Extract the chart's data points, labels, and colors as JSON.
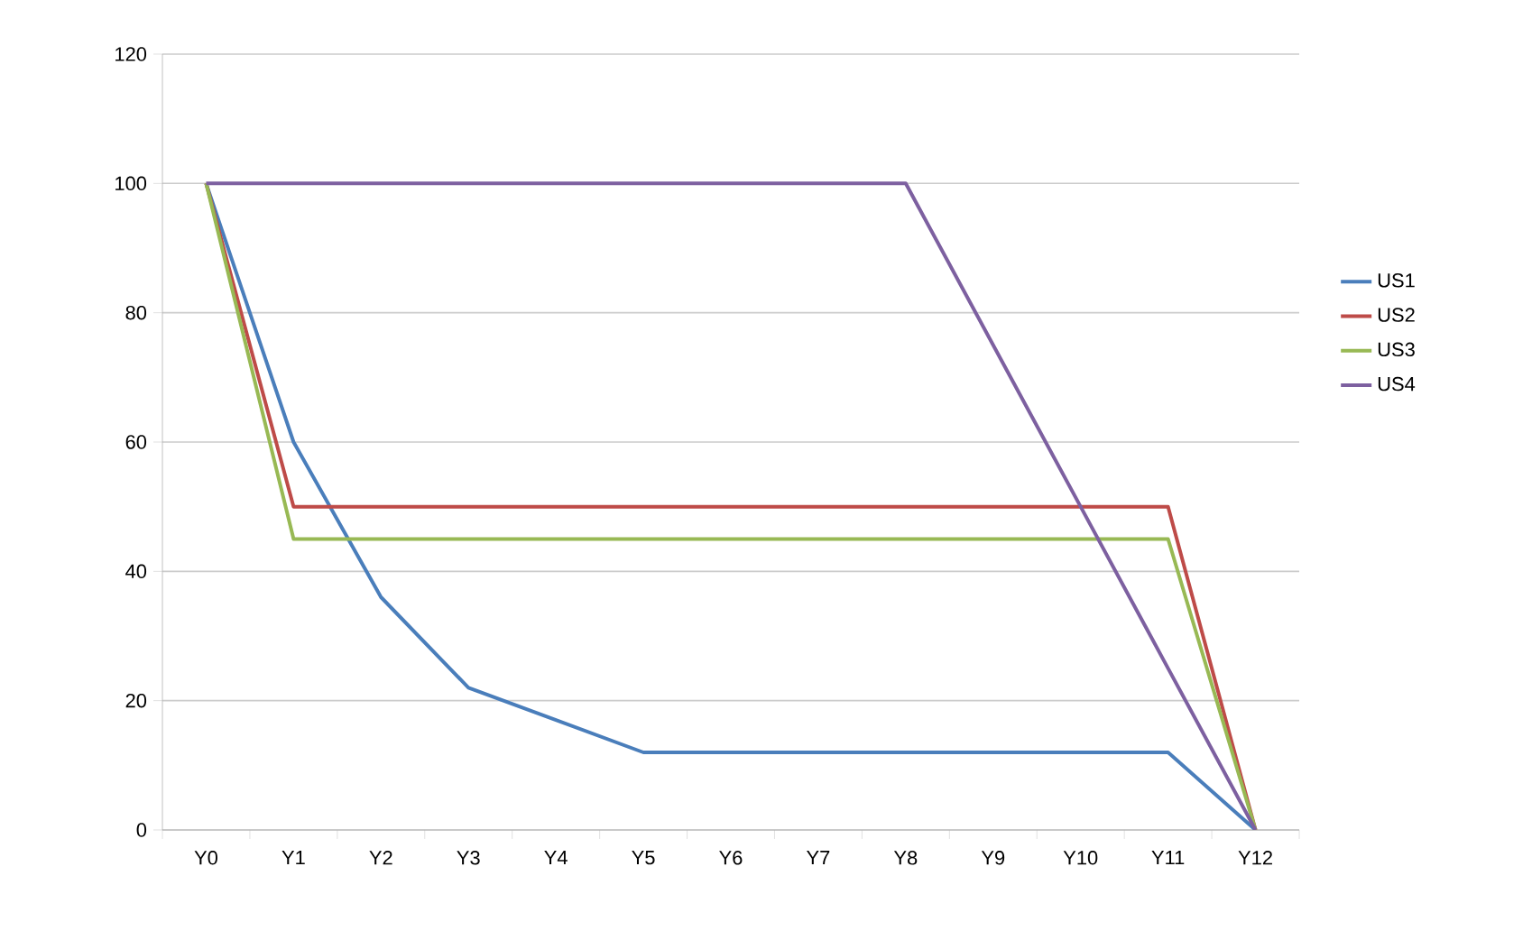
{
  "chart_data": {
    "type": "line",
    "categories": [
      "Y0",
      "Y1",
      "Y2",
      "Y3",
      "Y4",
      "Y5",
      "Y6",
      "Y7",
      "Y8",
      "Y9",
      "Y10",
      "Y11",
      "Y12"
    ],
    "series": [
      {
        "name": "US1",
        "color": "#4a7ebb",
        "values": [
          100,
          60,
          36,
          22,
          17,
          12,
          12,
          12,
          12,
          12,
          12,
          12,
          0
        ]
      },
      {
        "name": "US2",
        "color": "#be4b48",
        "values": [
          100,
          50,
          50,
          50,
          50,
          50,
          50,
          50,
          50,
          50,
          50,
          50,
          0
        ]
      },
      {
        "name": "US3",
        "color": "#98b954",
        "values": [
          100,
          45,
          45,
          45,
          45,
          45,
          45,
          45,
          45,
          45,
          45,
          45,
          0
        ]
      },
      {
        "name": "US4",
        "color": "#7d60a0",
        "values": [
          100,
          100,
          100,
          100,
          100,
          100,
          100,
          100,
          100,
          75,
          50,
          25,
          0
        ]
      }
    ],
    "ylim": [
      0,
      120
    ],
    "yticks": [
      0,
      20,
      40,
      60,
      80,
      100,
      120
    ],
    "grid": "y",
    "legend": "right",
    "marker": "none",
    "line_style": "solid"
  }
}
